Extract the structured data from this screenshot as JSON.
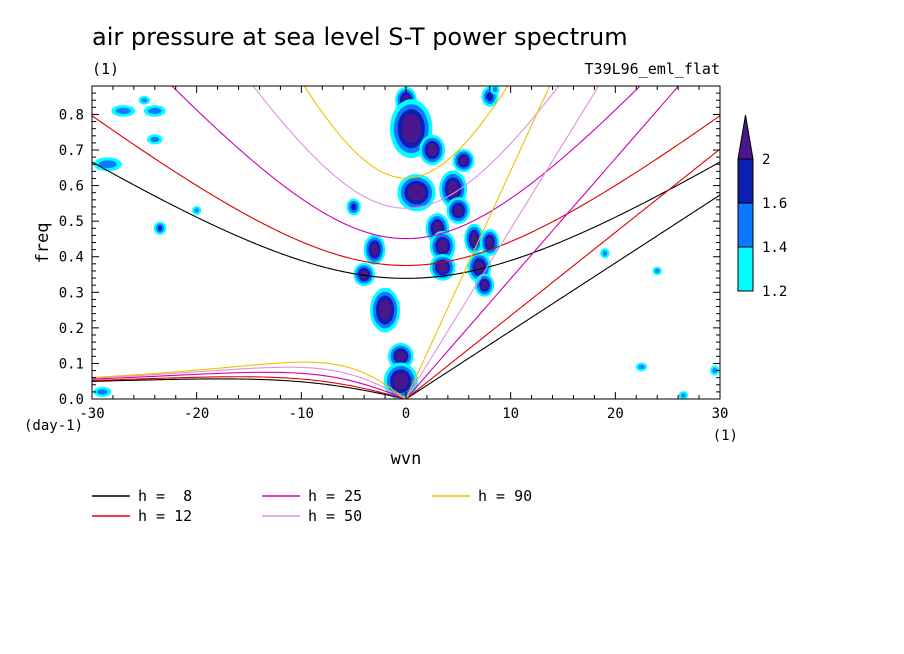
{
  "chart_data": {
    "type": "heatmap",
    "title": "air pressure at sea level S-T power spectrum",
    "units_label": "(1)",
    "experiment_label": "T39L96_eml_flat",
    "xlabel": "wvn",
    "ylabel": "freq",
    "x_units": "(1)",
    "y_units": "(day-1)",
    "xlim": [
      -30,
      30
    ],
    "ylim": [
      0,
      0.88
    ],
    "x_ticks": [
      -30,
      -20,
      -10,
      0,
      10,
      20,
      30
    ],
    "x_tick_labels": [
      "-30",
      "-20",
      "-10",
      "0",
      "10",
      "20",
      "30"
    ],
    "y_ticks": [
      0.0,
      0.1,
      0.2,
      0.3,
      0.4,
      0.5,
      0.6,
      0.7,
      0.8
    ],
    "y_tick_labels": [
      "0.0",
      "0.1",
      "0.2",
      "0.3",
      "0.4",
      "0.5",
      "0.6",
      "0.7",
      "0.8"
    ],
    "colorbar": {
      "levels": [
        1.2,
        1.4,
        1.6,
        2
      ],
      "level_labels": [
        "1.2",
        "1.4",
        "1.6",
        "2"
      ],
      "colors": [
        "#00ffff",
        "#0a78ff",
        "#0c1fb0",
        "#4a168c"
      ]
    },
    "dispersion_curves": [
      {
        "name": "h =  8",
        "h": 8,
        "color": "#000000"
      },
      {
        "name": "h = 12",
        "h": 12,
        "color": "#e00000"
      },
      {
        "name": "h = 25",
        "h": 25,
        "color": "#d000b0"
      },
      {
        "name": "h = 50",
        "h": 50,
        "color": "#e090e0"
      },
      {
        "name": "h = 90",
        "h": 90,
        "color": "#f0c000"
      }
    ],
    "spectral_features": [
      {
        "x": 0.0,
        "y": 0.84,
        "rx": 0.6,
        "ry": 0.025,
        "level": 3
      },
      {
        "x": 0.5,
        "y": 0.76,
        "rx": 1.6,
        "ry": 0.07,
        "level": 3
      },
      {
        "x": 2.5,
        "y": 0.7,
        "rx": 0.8,
        "ry": 0.03,
        "level": 3
      },
      {
        "x": 1.0,
        "y": 0.58,
        "rx": 1.4,
        "ry": 0.04,
        "level": 3
      },
      {
        "x": 4.5,
        "y": 0.59,
        "rx": 0.9,
        "ry": 0.04,
        "level": 3
      },
      {
        "x": 5.5,
        "y": 0.67,
        "rx": 0.6,
        "ry": 0.02,
        "level": 3
      },
      {
        "x": 5.0,
        "y": 0.53,
        "rx": 0.7,
        "ry": 0.025,
        "level": 3
      },
      {
        "x": 3.0,
        "y": 0.48,
        "rx": 0.7,
        "ry": 0.03,
        "level": 3
      },
      {
        "x": 3.5,
        "y": 0.43,
        "rx": 0.8,
        "ry": 0.03,
        "level": 3
      },
      {
        "x": 6.5,
        "y": 0.45,
        "rx": 0.5,
        "ry": 0.03,
        "level": 3
      },
      {
        "x": 8.0,
        "y": 0.44,
        "rx": 0.5,
        "ry": 0.025,
        "level": 3
      },
      {
        "x": -3.0,
        "y": 0.42,
        "rx": 0.6,
        "ry": 0.03,
        "level": 3
      },
      {
        "x": -4.0,
        "y": 0.35,
        "rx": 0.6,
        "ry": 0.02,
        "level": 3
      },
      {
        "x": 3.5,
        "y": 0.37,
        "rx": 0.8,
        "ry": 0.025,
        "level": 3
      },
      {
        "x": 7.0,
        "y": 0.37,
        "rx": 0.7,
        "ry": 0.03,
        "level": 3
      },
      {
        "x": 7.5,
        "y": 0.32,
        "rx": 0.5,
        "ry": 0.02,
        "level": 3
      },
      {
        "x": -2.0,
        "y": 0.25,
        "rx": 1.0,
        "ry": 0.05,
        "level": 3
      },
      {
        "x": -0.5,
        "y": 0.12,
        "rx": 0.8,
        "ry": 0.025,
        "level": 3
      },
      {
        "x": -0.5,
        "y": 0.05,
        "rx": 1.2,
        "ry": 0.04,
        "level": 3
      },
      {
        "x": -5.0,
        "y": 0.54,
        "rx": 0.4,
        "ry": 0.015,
        "level": 2
      },
      {
        "x": -23.5,
        "y": 0.48,
        "rx": 0.3,
        "ry": 0.01,
        "level": 2
      },
      {
        "x": -27.0,
        "y": 0.81,
        "rx": 1.0,
        "ry": 0.012,
        "level": 1
      },
      {
        "x": -24.0,
        "y": 0.81,
        "rx": 0.9,
        "ry": 0.012,
        "level": 1
      },
      {
        "x": -28.5,
        "y": 0.66,
        "rx": 1.2,
        "ry": 0.015,
        "level": 1
      },
      {
        "x": -24.0,
        "y": 0.73,
        "rx": 0.6,
        "ry": 0.01,
        "level": 1
      },
      {
        "x": -25.0,
        "y": 0.84,
        "rx": 0.4,
        "ry": 0.008,
        "level": 1
      },
      {
        "x": -29.0,
        "y": 0.02,
        "rx": 0.7,
        "ry": 0.01,
        "level": 1
      },
      {
        "x": -20.0,
        "y": 0.53,
        "rx": 0.3,
        "ry": 0.008,
        "level": 1
      },
      {
        "x": 19.0,
        "y": 0.41,
        "rx": 0.3,
        "ry": 0.01,
        "level": 1
      },
      {
        "x": 22.5,
        "y": 0.09,
        "rx": 0.4,
        "ry": 0.008,
        "level": 1
      },
      {
        "x": 26.5,
        "y": 0.01,
        "rx": 0.3,
        "ry": 0.008,
        "level": 1
      },
      {
        "x": 29.5,
        "y": 0.08,
        "rx": 0.3,
        "ry": 0.01,
        "level": 1
      },
      {
        "x": 24.0,
        "y": 0.36,
        "rx": 0.3,
        "ry": 0.008,
        "level": 1
      },
      {
        "x": 8.0,
        "y": 0.85,
        "rx": 0.5,
        "ry": 0.02,
        "level": 2
      },
      {
        "x": 8.5,
        "y": 0.87,
        "rx": 0.3,
        "ry": 0.01,
        "level": 1
      }
    ]
  }
}
